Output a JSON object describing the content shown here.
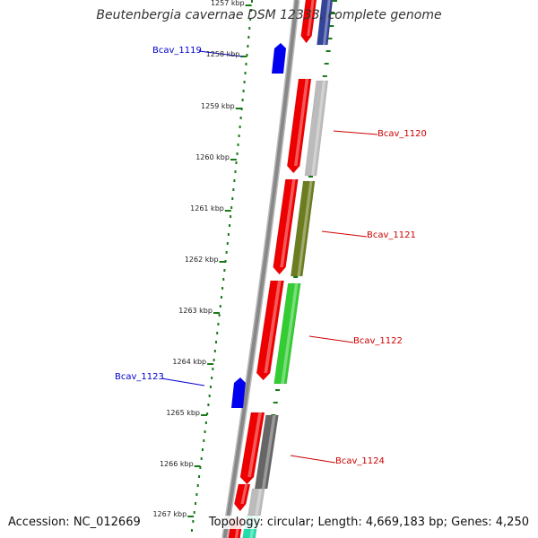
{
  "title": "Beutenbergia cavernae DSM 12333, complete genome",
  "accession": "Accession: NC_012669",
  "summary": "Topology: circular; Length: 4,669,183 bp; Genes: 4,250",
  "ticks": [
    "1257 kbp",
    "1258 kbp",
    "1259 kbp",
    "1260 kbp",
    "1261 kbp",
    "1262 kbp",
    "1263 kbp",
    "1264 kbp",
    "1265 kbp",
    "1266 kbp",
    "1267 kbp"
  ],
  "gene_labels": [
    {
      "label": "Bcav_1119",
      "color": "#0000cc"
    },
    {
      "label": "Bcav_1120",
      "color": "#cc0000"
    },
    {
      "label": "Bcav_1121",
      "color": "#cc0000"
    },
    {
      "label": "Bcav_1122",
      "color": "#cc0000"
    },
    {
      "label": "Bcav_1123",
      "color": "#0000cc"
    },
    {
      "label": "Bcav_1124",
      "color": "#cc0000"
    }
  ],
  "colors": {
    "forward_gene": "#0000ee",
    "cds": "#ee0000",
    "backbone": "#888888",
    "scale_marks": "#1a7a1a",
    "feature_gray": "#bbbbbb",
    "feature_olive": "#6b7d1f",
    "feature_green": "#33cc33",
    "feature_darkgray": "#666666",
    "feature_teal": "#22ddaa",
    "feature_navy": "#334499"
  }
}
